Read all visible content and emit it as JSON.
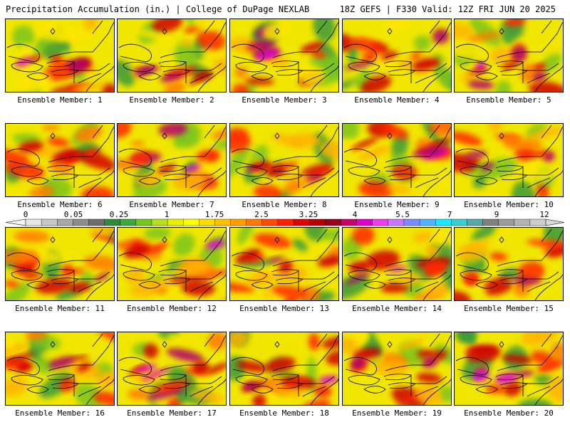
{
  "header": {
    "left": "Precipitation Accumulation (in.) | College of DuPage NEXLAB",
    "right": "18Z GEFS | F330 Valid: 12Z FRI JUN 20 2025"
  },
  "members": [
    {
      "label": "Ensemble Member: 1",
      "intensity": 0.55
    },
    {
      "label": "Ensemble Member: 2",
      "intensity": 0.4
    },
    {
      "label": "Ensemble Member: 3",
      "intensity": 0.6
    },
    {
      "label": "Ensemble Member: 4",
      "intensity": 0.55
    },
    {
      "label": "Ensemble Member: 5",
      "intensity": 0.7
    },
    {
      "label": "Ensemble Member: 6",
      "intensity": 0.35
    },
    {
      "label": "Ensemble Member: 7",
      "intensity": 0.6
    },
    {
      "label": "Ensemble Member: 8",
      "intensity": 0.5
    },
    {
      "label": "Ensemble Member: 9",
      "intensity": 0.5
    },
    {
      "label": "Ensemble Member: 10",
      "intensity": 0.35
    },
    {
      "label": "Ensemble Member: 11",
      "intensity": 0.5
    },
    {
      "label": "Ensemble Member: 12",
      "intensity": 0.6
    },
    {
      "label": "Ensemble Member: 13",
      "intensity": 0.3
    },
    {
      "label": "Ensemble Member: 14",
      "intensity": 0.7
    },
    {
      "label": "Ensemble Member: 15",
      "intensity": 0.4
    },
    {
      "label": "Ensemble Member: 16",
      "intensity": 0.25
    },
    {
      "label": "Ensemble Member: 17",
      "intensity": 0.6
    },
    {
      "label": "Ensemble Member: 18",
      "intensity": 0.5
    },
    {
      "label": "Ensemble Member: 19",
      "intensity": 0.55
    },
    {
      "label": "Ensemble Member: 20",
      "intensity": 0.55
    }
  ],
  "colorbar": {
    "labels": [
      "0",
      "0.05",
      "0.25",
      "1",
      "1.75",
      "2.5",
      "3.25",
      "4",
      "5.5",
      "7",
      "9",
      "12"
    ],
    "colors": [
      "#e6e6e6",
      "#c8c8c8",
      "#a8a8a8",
      "#8c8c8c",
      "#6e6e6e",
      "#2e8b3a",
      "#3aa83a",
      "#72c81e",
      "#b4e01e",
      "#e6f000",
      "#ffff00",
      "#ffdc00",
      "#ffc000",
      "#ffa000",
      "#ff7800",
      "#ff4a00",
      "#ff1e00",
      "#e00000",
      "#b80000",
      "#960018",
      "#c8006e",
      "#e000c8",
      "#f03cf0",
      "#c878ff",
      "#788cff",
      "#50b4ff",
      "#1ee6ff",
      "#3ccdcd",
      "#5aa5a5",
      "#808080",
      "#9b9b9b",
      "#b4b4b4",
      "#cdcdcd"
    ]
  }
}
